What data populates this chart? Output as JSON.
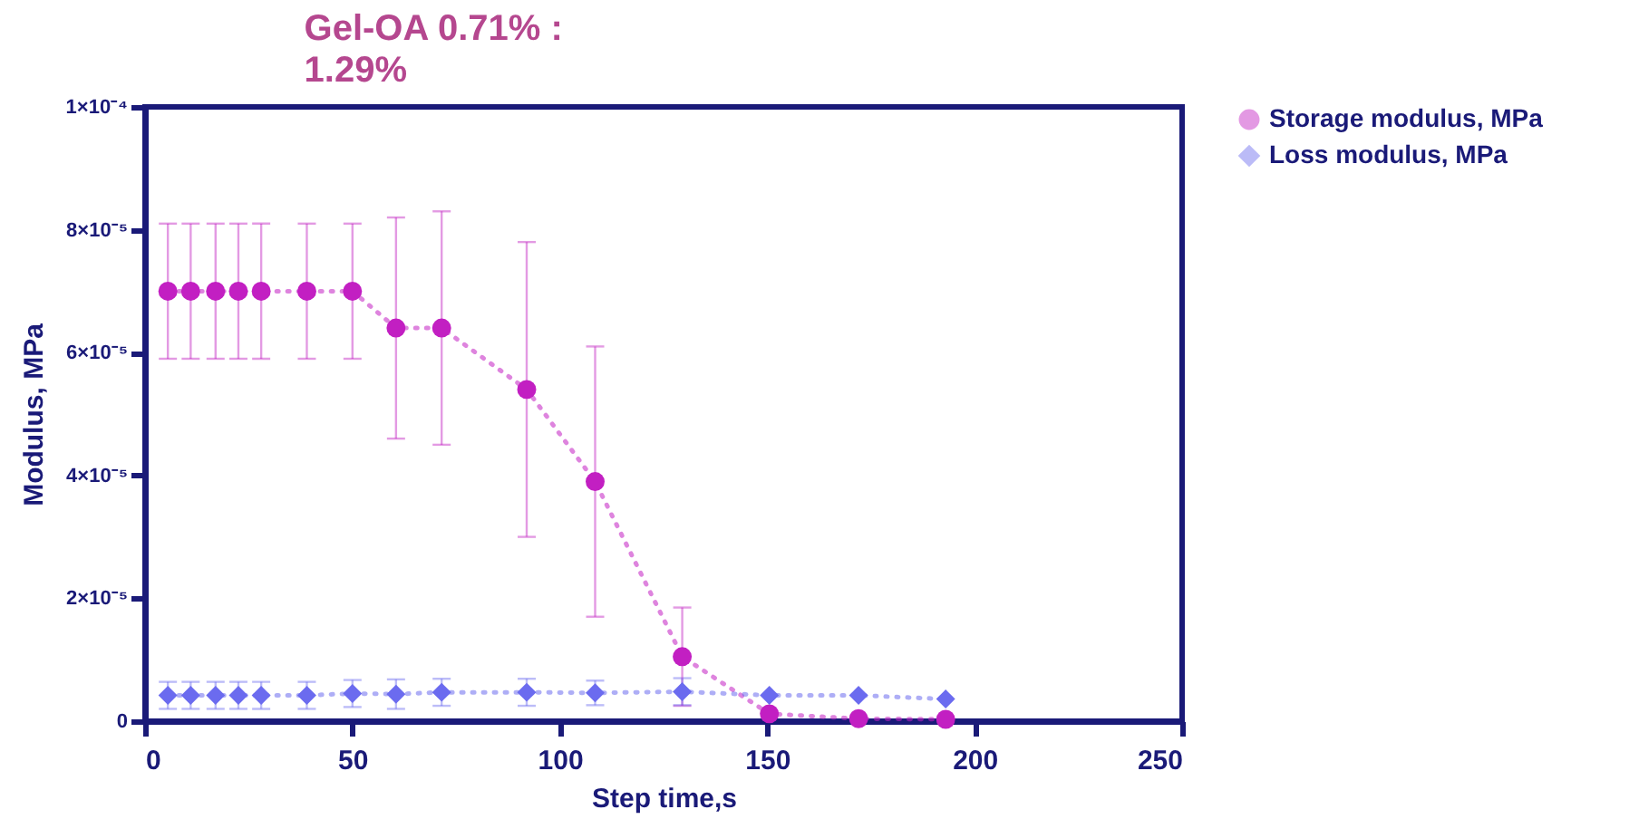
{
  "chart_data": {
    "type": "line",
    "title": "Gel-OA 0.71% : 1.29%",
    "xlabel": "Step time,s",
    "ylabel": "Modulus, MPa",
    "x": [
      5.5,
      11,
      17,
      22.5,
      28,
      39,
      50,
      60.5,
      71.5,
      92,
      108.5,
      129.5,
      150.5,
      172,
      193
    ],
    "series": [
      {
        "name": "Storage modulus, MPa",
        "color": "#c21fc2",
        "marker": "circle",
        "values": [
          7e-05,
          7e-05,
          7e-05,
          7e-05,
          7e-05,
          7e-05,
          7e-05,
          6.4e-05,
          6.4e-05,
          5.4e-05,
          3.9e-05,
          1.05e-05,
          1.2e-06,
          4e-07,
          3e-07
        ],
        "errors": [
          1.1e-05,
          1.1e-05,
          1.1e-05,
          1.1e-05,
          1.1e-05,
          1.1e-05,
          1.1e-05,
          1.8e-05,
          1.9e-05,
          2.4e-05,
          2.2e-05,
          8e-06,
          null,
          null,
          null
        ]
      },
      {
        "name": "Loss modulus, MPa",
        "color": "#6b6bef",
        "marker": "diamond",
        "values": [
          4.2e-06,
          4.2e-06,
          4.2e-06,
          4.2e-06,
          4.2e-06,
          4.2e-06,
          4.5e-06,
          4.4e-06,
          4.7e-06,
          4.7e-06,
          4.6e-06,
          4.8e-06,
          4.2e-06,
          4.2e-06,
          3.6e-06
        ],
        "errors": [
          2.2e-06,
          2.2e-06,
          2.2e-06,
          2.2e-06,
          2.2e-06,
          2.2e-06,
          2.2e-06,
          2.4e-06,
          2.2e-06,
          2.2e-06,
          2e-06,
          2.2e-06,
          null,
          null,
          null
        ]
      }
    ],
    "xlim": [
      0,
      250
    ],
    "xticks": [
      0,
      50,
      100,
      150,
      200,
      250
    ],
    "ylim": [
      0,
      0.0001
    ],
    "yticks": [
      {
        "value": 0,
        "label": "0"
      },
      {
        "value": 2e-05,
        "label": "2×10⁻⁵"
      },
      {
        "value": 4e-05,
        "label": "4×10⁻⁵"
      },
      {
        "value": 6e-05,
        "label": "6×10⁻⁵"
      },
      {
        "value": 8e-05,
        "label": "8×10⁻⁵"
      },
      {
        "value": 0.0001,
        "label": "1×10⁻⁴"
      }
    ],
    "grid": false,
    "legend": "right",
    "line_style": "dotted"
  }
}
